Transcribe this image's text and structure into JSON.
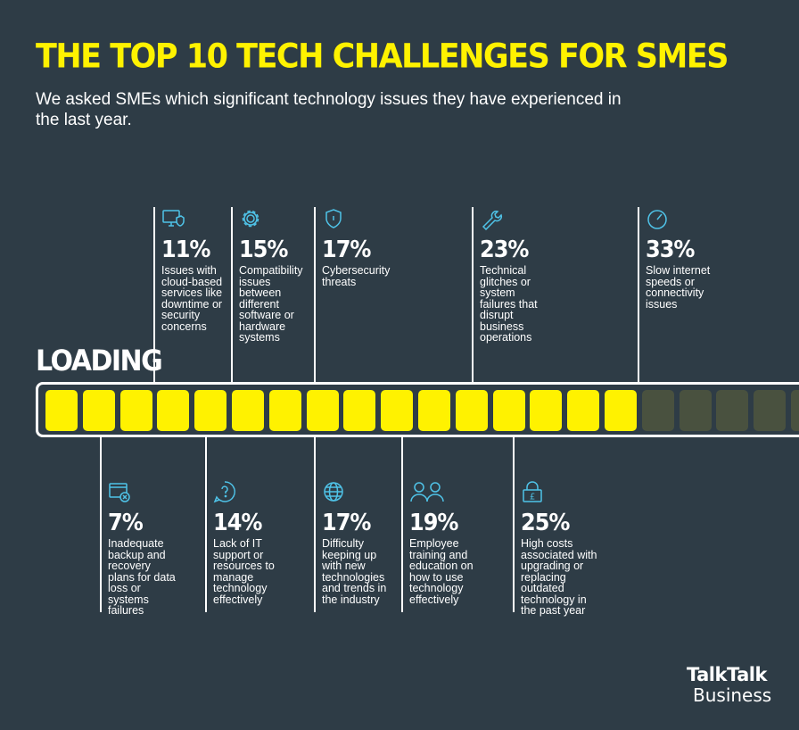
{
  "header": {
    "title": "THE TOP 10 TECH CHALLENGES FOR SMES",
    "subtitle": "We asked SMEs which significant technology issues they have experienced in the last year."
  },
  "loading_label": "LOADING",
  "progress": {
    "total_segments": 21,
    "filled_segments": 16
  },
  "colors": {
    "background": "#2e3c46",
    "accent": "#fff200",
    "icon": "#4fc3e8"
  },
  "chart_data": {
    "type": "bar",
    "categories": [
      "Inadequate backup and recovery plans for data loss or systems failures",
      "Issues with cloud-based services like downtime or security concerns",
      "Lack of IT support or resources to manage technology effectively",
      "Compatibility issues between different software or hardware systems",
      "Cybersecurity threats",
      "Difficulty keeping up with new technologies and trends in the industry",
      "Employee training and education on how to use technology effectively",
      "Technical glitches or system failures that disrupt business operations",
      "High costs associated with upgrading or replacing outdated technology in the past year",
      "Slow internet speeds or connectivity issues"
    ],
    "values": [
      7,
      11,
      14,
      15,
      17,
      17,
      19,
      23,
      25,
      33
    ],
    "unit": "%"
  },
  "callouts_top": [
    {
      "pct": "11%",
      "desc": "Issues with cloud-based services like downtime or security concerns",
      "icon": "cloud-monitor-icon"
    },
    {
      "pct": "15%",
      "desc": "Compatibility issues between different software or hardware systems",
      "icon": "gear-icon"
    },
    {
      "pct": "17%",
      "desc": "Cybersecurity threats",
      "icon": "shield-icon"
    },
    {
      "pct": "23%",
      "desc": "Technical glitches or system failures that disrupt business operations",
      "icon": "wrench-icon"
    },
    {
      "pct": "33%",
      "desc": "Slow internet speeds or connectivity issues",
      "icon": "speedometer-icon"
    }
  ],
  "callouts_bottom": [
    {
      "pct": "7%",
      "desc": "Inadequate backup and recovery plans for data loss or systems failures",
      "icon": "window-error-icon"
    },
    {
      "pct": "14%",
      "desc": "Lack of IT support or resources to manage technology effectively",
      "icon": "question-icon"
    },
    {
      "pct": "17%",
      "desc": "Difficulty keeping up with new technologies and trends in the industry",
      "icon": "globe-icon"
    },
    {
      "pct": "19%",
      "desc": "Employee training and education on how to use technology effectively",
      "icon": "people-icon"
    },
    {
      "pct": "25%",
      "desc": "High costs associated with upgrading or replacing outdated technology in the past year",
      "icon": "lock-pound-icon"
    }
  ],
  "logo": {
    "line1": "TalkTalk",
    "line2": "Business"
  }
}
